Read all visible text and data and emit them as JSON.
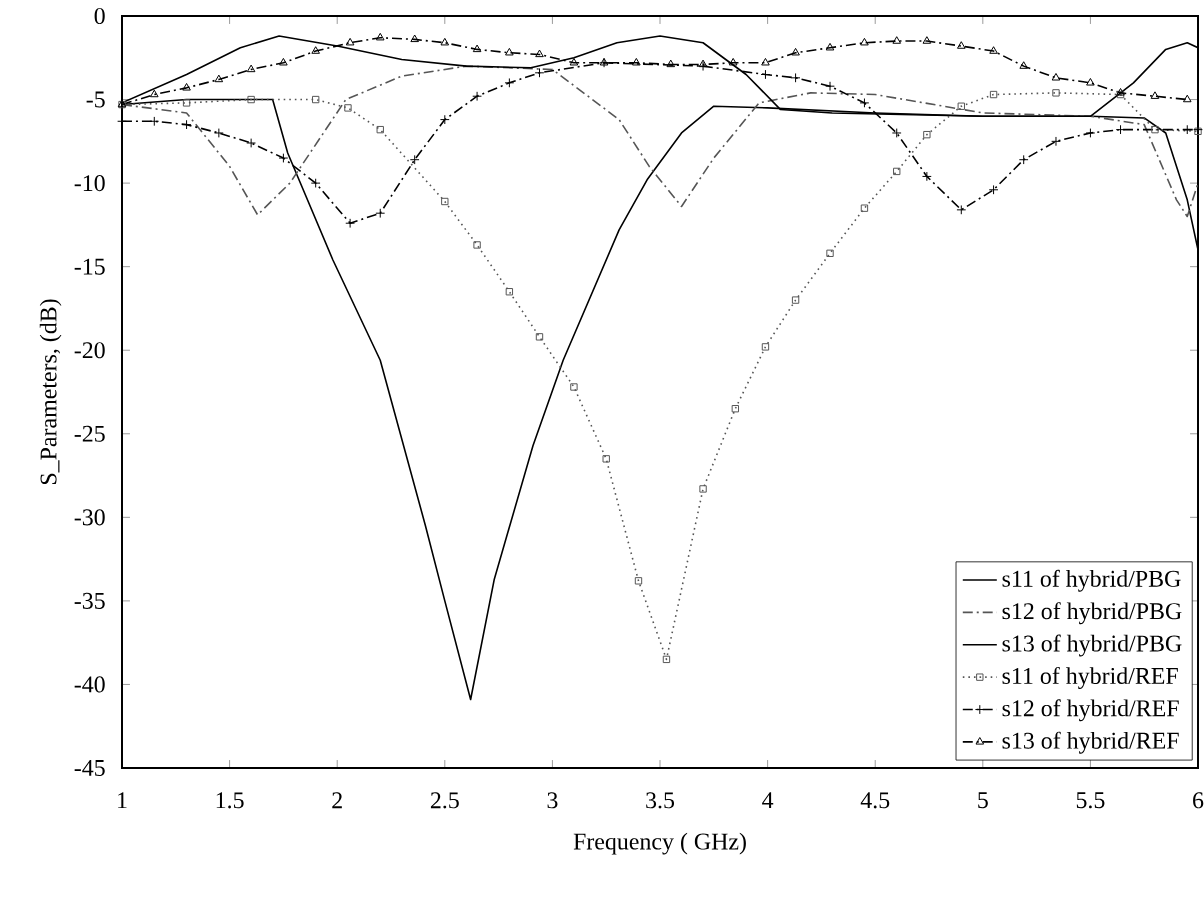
{
  "chart_data": {
    "type": "line",
    "xlabel": "Frequency ( GHz)",
    "ylabel": "S_Parameters, (dB)",
    "xlim": [
      1,
      6
    ],
    "ylim": [
      -45,
      0
    ],
    "xticks": [
      1,
      1.5,
      2,
      2.5,
      3,
      3.5,
      4,
      4.5,
      5,
      5.5,
      6
    ],
    "yticks": [
      -45,
      -40,
      -35,
      -30,
      -25,
      -20,
      -15,
      -10,
      -5,
      0
    ],
    "grid": false,
    "legend": "bottom right",
    "series": [
      {
        "name": "s11 of hybrid/PBG",
        "color": "#000000",
        "line_style": "solid",
        "marker": "none",
        "x": [
          1,
          1.3,
          1.7,
          1.77,
          1.98,
          2.2,
          2.41,
          2.5,
          2.62,
          2.73,
          2.91,
          3.05,
          3.31,
          3.44,
          3.6,
          3.75,
          4.0,
          4.5,
          5.0,
          5.5,
          5.75,
          5.85,
          5.95,
          6.0
        ],
        "values": [
          -5.3,
          -5.0,
          -5.0,
          -8.2,
          -14.6,
          -20.6,
          -30.5,
          -35,
          -40.9,
          -33.7,
          -25.7,
          -20.6,
          -12.8,
          -9.8,
          -7,
          -5.4,
          -5.5,
          -5.8,
          -6.0,
          -6.0,
          -6.1,
          -7,
          -11,
          -14
        ]
      },
      {
        "name": "s12 of hybrid/PBG",
        "color": "#555555",
        "line_style": "dashed",
        "marker": "none",
        "x": [
          1,
          1.3,
          1.5,
          1.63,
          1.78,
          2.04,
          2.3,
          2.6,
          3.0,
          3.31,
          3.45,
          3.6,
          3.75,
          3.96,
          4.2,
          4.5,
          5.0,
          5.5,
          5.75,
          5.9,
          5.95,
          6.0
        ],
        "values": [
          -5.3,
          -5.8,
          -9,
          -11.9,
          -10,
          -5,
          -3.6,
          -3.0,
          -3.2,
          -6.2,
          -9,
          -11.4,
          -8.5,
          -5.2,
          -4.6,
          -4.7,
          -5.8,
          -6.0,
          -6.5,
          -11,
          -12,
          -10
        ]
      },
      {
        "name": "s13 of hybrid/PBG",
        "color": "#000000",
        "line_style": "solid",
        "marker": "none",
        "x": [
          1,
          1.3,
          1.55,
          1.73,
          2.0,
          2.3,
          2.6,
          2.9,
          3.1,
          3.3,
          3.5,
          3.7,
          3.9,
          4.06,
          4.3,
          5.0,
          5.5,
          5.7,
          5.85,
          5.95,
          6.0
        ],
        "values": [
          -5.2,
          -3.5,
          -1.9,
          -1.2,
          -1.8,
          -2.6,
          -3.0,
          -3.1,
          -2.5,
          -1.6,
          -1.2,
          -1.6,
          -3.5,
          -5.6,
          -5.8,
          -6.0,
          -6.0,
          -4,
          -2,
          -1.6,
          -1.9
        ]
      },
      {
        "name": "s11 of hybrid/REF",
        "color": "#555555",
        "line_style": "dotted",
        "marker": "square",
        "x": [
          1,
          1.3,
          1.6,
          1.9,
          2.05,
          2.2,
          2.5,
          2.65,
          2.8,
          2.94,
          3.1,
          3.25,
          3.4,
          3.53,
          3.7,
          3.85,
          3.99,
          4.13,
          4.29,
          4.45,
          4.6,
          4.74,
          4.9,
          5.05,
          5.34,
          5.64,
          5.8,
          6.0
        ],
        "values": [
          -5.3,
          -5.2,
          -5.0,
          -5.0,
          -5.5,
          -6.8,
          -11.1,
          -13.7,
          -16.5,
          -19.2,
          -22.2,
          -26.5,
          -33.8,
          -38.5,
          -28.3,
          -23.5,
          -19.8,
          -17,
          -14.2,
          -11.5,
          -9.3,
          -7.1,
          -5.4,
          -4.7,
          -4.6,
          -4.7,
          -6.8,
          -6.9
        ]
      },
      {
        "name": "s12 of hybrid/REF",
        "color": "#000000",
        "line_style": "dashed",
        "marker": "cross",
        "x": [
          1,
          1.15,
          1.3,
          1.45,
          1.6,
          1.75,
          1.9,
          2.06,
          2.2,
          2.36,
          2.5,
          2.65,
          2.8,
          2.94,
          3.24,
          3.7,
          3.99,
          4.13,
          4.29,
          4.45,
          4.6,
          4.74,
          4.9,
          5.05,
          5.19,
          5.34,
          5.5,
          5.64,
          5.95,
          6.0
        ],
        "values": [
          -6.3,
          -6.3,
          -6.5,
          -7.0,
          -7.6,
          -8.5,
          -10.0,
          -12.4,
          -11.8,
          -8.6,
          -6.2,
          -4.8,
          -4.0,
          -3.4,
          -2.8,
          -3.0,
          -3.5,
          -3.7,
          -4.2,
          -5.2,
          -7.0,
          -9.6,
          -11.6,
          -10.4,
          -8.6,
          -7.5,
          -7.0,
          -6.8,
          -6.8,
          -6.8
        ]
      },
      {
        "name": "s13 of hybrid/REF",
        "color": "#000000",
        "line_style": "dashed",
        "marker": "triangle",
        "x": [
          1,
          1.15,
          1.3,
          1.45,
          1.6,
          1.75,
          1.9,
          2.06,
          2.2,
          2.36,
          2.5,
          2.65,
          2.8,
          2.94,
          3.1,
          3.24,
          3.39,
          3.55,
          3.7,
          3.84,
          3.99,
          4.13,
          4.29,
          4.45,
          4.6,
          4.74,
          4.9,
          5.05,
          5.19,
          5.34,
          5.5,
          5.64,
          5.8,
          5.95
        ],
        "values": [
          -5.3,
          -4.7,
          -4.3,
          -3.8,
          -3.2,
          -2.8,
          -2.1,
          -1.6,
          -1.3,
          -1.4,
          -1.6,
          -2.0,
          -2.2,
          -2.3,
          -2.8,
          -2.8,
          -2.8,
          -2.9,
          -2.9,
          -2.8,
          -2.8,
          -2.2,
          -1.9,
          -1.6,
          -1.5,
          -1.5,
          -1.8,
          -2.1,
          -3.0,
          -3.7,
          -4.0,
          -4.6,
          -4.8,
          -5.0
        ]
      }
    ]
  }
}
